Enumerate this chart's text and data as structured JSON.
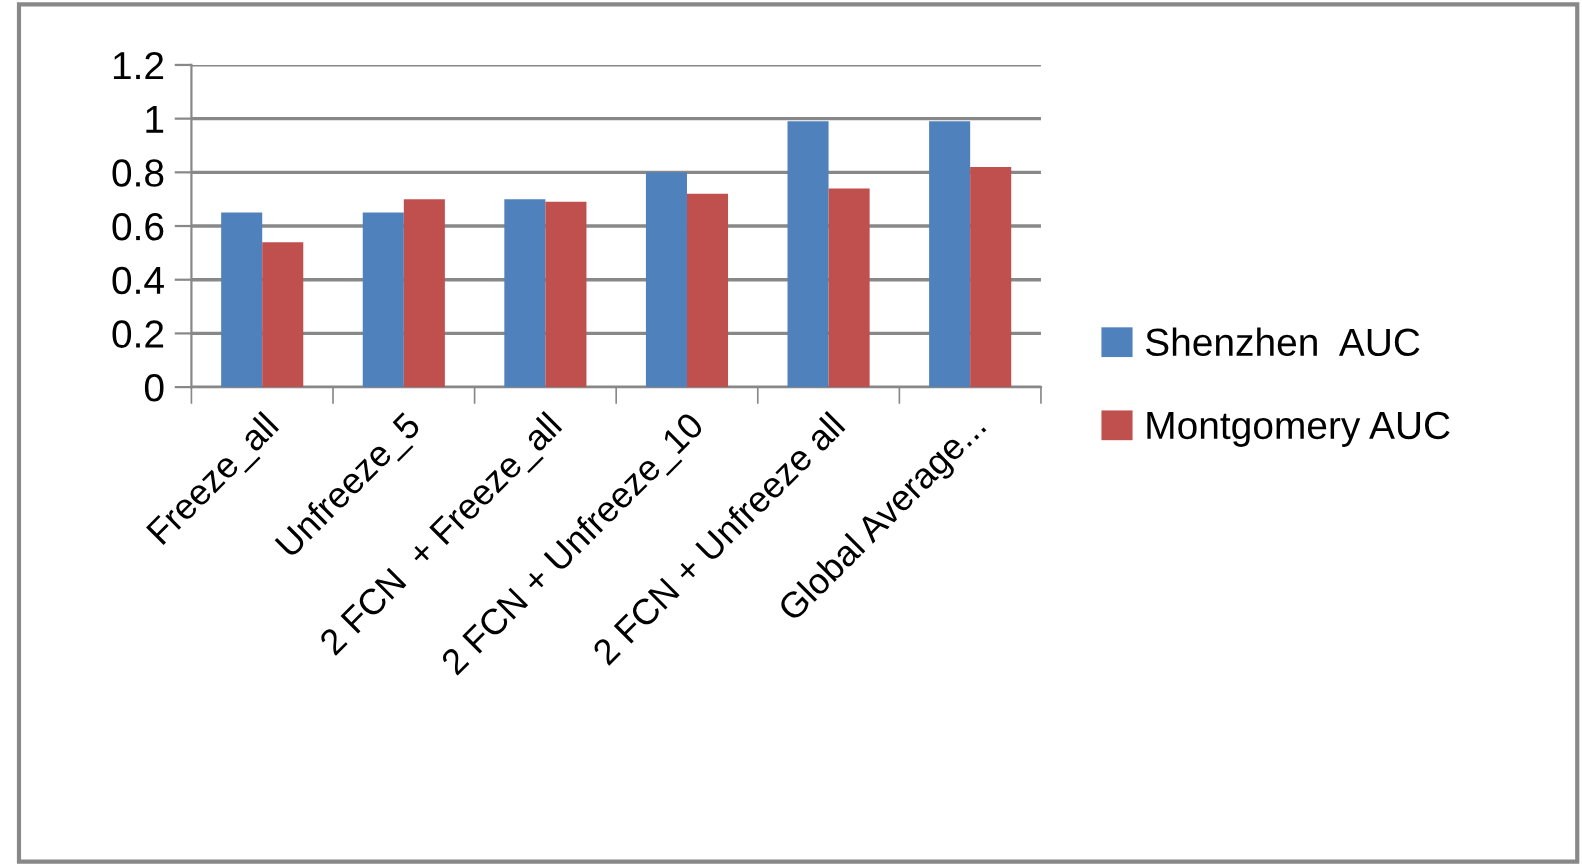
{
  "chart_data": {
    "type": "bar",
    "categories": [
      "Freeze_all",
      "Unfreeze_5",
      "2 FCN  + Freeze_all",
      "2 FCN + Unfreeze_10",
      "2 FCN + Unfreeze all",
      "Global Average..."
    ],
    "series": [
      {
        "name": "Shenzhen  AUC",
        "color": "#4f81bd",
        "values": [
          0.65,
          0.65,
          0.7,
          0.8,
          0.99,
          0.99
        ]
      },
      {
        "name": "Montgomery AUC",
        "color": "#c0504d",
        "values": [
          0.54,
          0.7,
          0.69,
          0.72,
          0.74,
          0.82
        ]
      }
    ],
    "ylim": [
      0,
      1.2
    ],
    "yticks": [
      0,
      0.2,
      0.4,
      0.6,
      0.8,
      1,
      1.2
    ],
    "grid": "y",
    "legend": "right"
  }
}
